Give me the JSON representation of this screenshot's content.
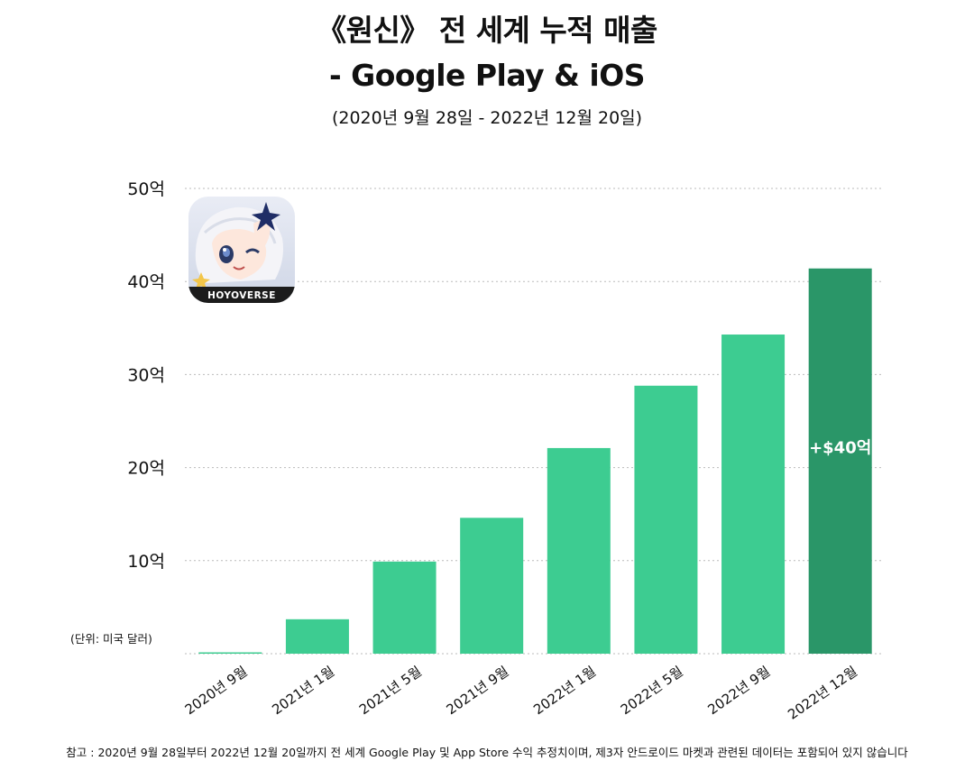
{
  "title": {
    "line1": "《원신》 전 세계 누적 매출",
    "line2": "- Google Play & iOS"
  },
  "subtitle": "(2020년 9월 28일 - 2022년 12월 20일)",
  "unit_label": "(단위: 미국 달러)",
  "footnote": "참고 : 2020년 9월 28일부터 2022년 12월 20일까지 전 세계 Google Play 및 App Store 수익 추정치이며, 제3자 안드로이드 마켓과 관련된 데이터는 포함되어 있지 않습니다",
  "app_icon": {
    "name": "genshin-paimon-icon",
    "brand_text": "HOYOVERSE"
  },
  "colors": {
    "bar": "#3dcc91",
    "bar_highlight": "#2a9668",
    "grid": "#bbbbbb"
  },
  "chart_data": {
    "type": "bar",
    "categories": [
      "2020년 9월",
      "2021년 1월",
      "2021년 5월",
      "2021년 9월",
      "2022년 1월",
      "2022년 5월",
      "2022년 9월",
      "2022년 12월"
    ],
    "values": [
      0.1,
      3.7,
      9.9,
      14.6,
      22.1,
      28.8,
      34.3,
      41.4
    ],
    "ylim": [
      0,
      50
    ],
    "yticks": [
      10,
      20,
      30,
      40,
      50
    ],
    "ytick_labels": [
      "10억",
      "20억",
      "30억",
      "40억",
      "50억"
    ],
    "highlight_index": 7,
    "annotation": "+$40억",
    "grid": true
  }
}
